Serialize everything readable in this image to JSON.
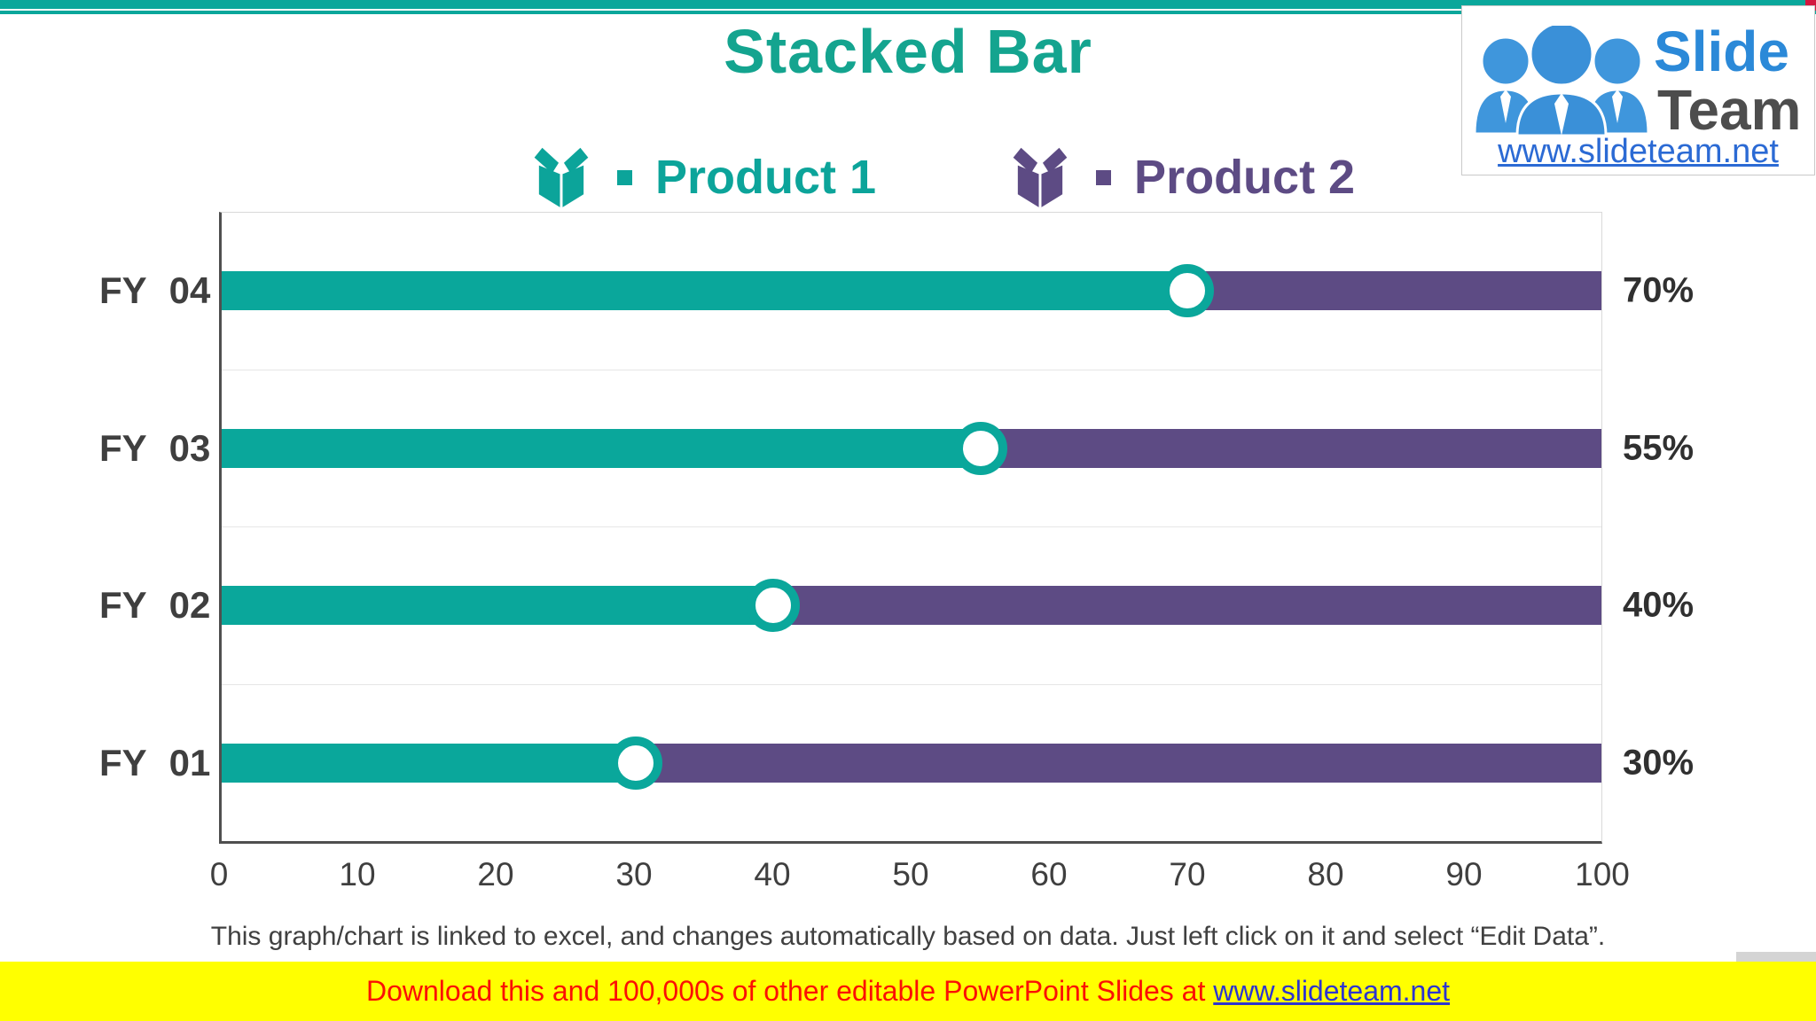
{
  "header": {
    "title": "Stacked Bar",
    "accent_teal": "#0aa79b",
    "accent_purple": "#5d4b84"
  },
  "legend": {
    "items": [
      {
        "label": "Product 1",
        "color": "#0ca49a"
      },
      {
        "label": "Product 2",
        "color": "#5d4b84"
      }
    ]
  },
  "logo": {
    "name_part1": "Slide",
    "name_part2": "Team",
    "url": "www.slideteam.net"
  },
  "chart_data": {
    "type": "bar",
    "orientation": "horizontal",
    "stacked": true,
    "categories": [
      "FY 04",
      "FY 03",
      "FY 02",
      "FY 01"
    ],
    "series": [
      {
        "name": "Product 1",
        "color": "#0aa79b",
        "values": [
          70,
          55,
          40,
          30
        ]
      },
      {
        "name": "Product 2",
        "color": "#5d4b84",
        "values": [
          30,
          45,
          60,
          70
        ]
      }
    ],
    "value_labels": [
      "70%",
      "55%",
      "40%",
      "30%"
    ],
    "xlim": [
      0,
      100
    ],
    "xticks": [
      0,
      10,
      20,
      30,
      40,
      50,
      60,
      70,
      80,
      90,
      100
    ],
    "marker": "white circle with teal ring at junction of the two segments",
    "grid": "light horizontal separators between category rows",
    "legend_position": "top"
  },
  "footer": {
    "note": "This graph/chart is linked to excel, and changes automatically based on data. Just left click on it and select “Edit Data”."
  },
  "banner": {
    "text_before_link": "Download this and 100,000s of other editable PowerPoint Slides at ",
    "link": "www.slideteam.net",
    "bg": "#ffff00"
  }
}
